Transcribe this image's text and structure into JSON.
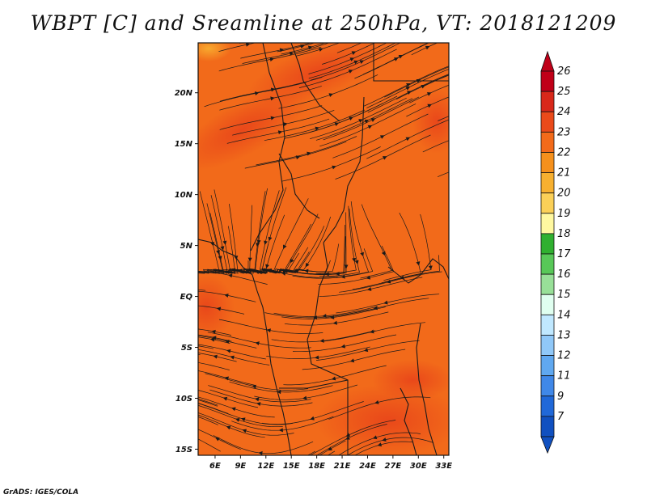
{
  "title": "WBPT [C] and Sreamline at 250hPa, VT: 2018121209",
  "credit": "GrADS: IGES/COLA",
  "map": {
    "lat_labels": [
      "20N",
      "15N",
      "10N",
      "5N",
      "EQ",
      "5S",
      "10S",
      "15S"
    ],
    "lon_labels": [
      "6E",
      "9E",
      "12E",
      "15E",
      "18E",
      "21E",
      "24E",
      "27E",
      "30E",
      "33E"
    ],
    "base_color": "#f26a1a",
    "warm_color": "#ea4a1a",
    "cool_color": "#f7a028"
  },
  "colorbar": {
    "levels": [
      "26",
      "25",
      "24",
      "23",
      "22",
      "21",
      "20",
      "19",
      "18",
      "17",
      "16",
      "15",
      "14",
      "13",
      "12",
      "11",
      "9",
      "7"
    ],
    "colors": [
      "#c00018",
      "#d8281a",
      "#ea4a1a",
      "#f26a1a",
      "#f5901c",
      "#f7b030",
      "#fbd058",
      "#fff8a0",
      "#30b030",
      "#58c858",
      "#98e098",
      "#e0fff0",
      "#c0e8ff",
      "#90c8f8",
      "#60a8f0",
      "#4088e8",
      "#2068d8",
      "#1050c0"
    ]
  }
}
